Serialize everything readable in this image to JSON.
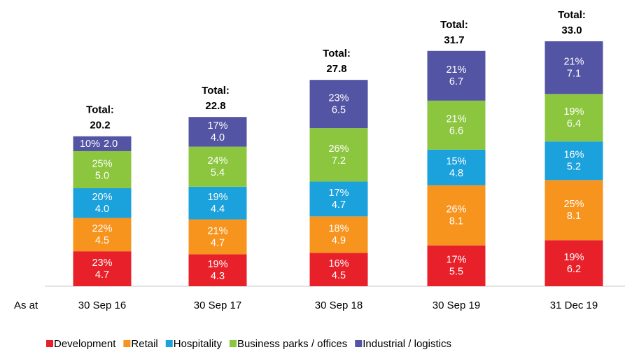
{
  "chart_data": {
    "type": "stacked_bar",
    "x_label": "As at",
    "categories": [
      "30 Sep 16",
      "30 Sep 17",
      "30 Sep 18",
      "30 Sep 19",
      "31 Dec 19"
    ],
    "total_label": "Total:",
    "totals": [
      20.2,
      22.8,
      27.8,
      31.7,
      33.0
    ],
    "totals_labels": [
      "20.2",
      "22.8",
      "27.8",
      "31.7",
      "33.0"
    ],
    "series": [
      {
        "name": "Development",
        "color": "#e8202a",
        "values": [
          4.7,
          4.3,
          4.5,
          5.5,
          6.2
        ],
        "value_labels": [
          "4.7",
          "4.3",
          "4.5",
          "5.5",
          "6.2"
        ],
        "shares": [
          23,
          19,
          16,
          17,
          19
        ],
        "share_labels": [
          "23%",
          "19%",
          "16%",
          "17%",
          "19%"
        ]
      },
      {
        "name": "Retail",
        "color": "#f7941d",
        "values": [
          4.5,
          4.7,
          4.9,
          8.1,
          8.1
        ],
        "value_labels": [
          "4.5",
          "4.7",
          "4.9",
          "8.1",
          "8.1"
        ],
        "shares": [
          22,
          21,
          18,
          26,
          25
        ],
        "share_labels": [
          "22%",
          "21%",
          "18%",
          "26%",
          "25%"
        ]
      },
      {
        "name": "Hospitality",
        "color": "#1ba1dc",
        "values": [
          4.0,
          4.4,
          4.7,
          4.8,
          5.2
        ],
        "value_labels": [
          "4.0",
          "4.4",
          "4.7",
          "4.8",
          "5.2"
        ],
        "shares": [
          20,
          19,
          17,
          15,
          16
        ],
        "share_labels": [
          "20%",
          "19%",
          "17%",
          "15%",
          "16%"
        ]
      },
      {
        "name": "Business parks / offices",
        "color": "#8cc63f",
        "values": [
          5.0,
          5.4,
          7.2,
          6.6,
          6.4
        ],
        "value_labels": [
          "5.0",
          "5.4",
          "7.2",
          "6.6",
          "6.4"
        ],
        "shares": [
          25,
          24,
          26,
          21,
          19
        ],
        "share_labels": [
          "25%",
          "24%",
          "26%",
          "21%",
          "19%"
        ]
      },
      {
        "name": "Industrial / logistics",
        "color": "#5454a4",
        "values": [
          2.0,
          4.0,
          6.5,
          6.7,
          7.1
        ],
        "value_labels": [
          "2.0",
          "4.0",
          "6.5",
          "6.7",
          "7.1"
        ],
        "shares": [
          10,
          17,
          23,
          21,
          21
        ],
        "share_labels": [
          "10%",
          "17%",
          "23%",
          "21%",
          "21%"
        ]
      }
    ],
    "legend": "bottom"
  }
}
